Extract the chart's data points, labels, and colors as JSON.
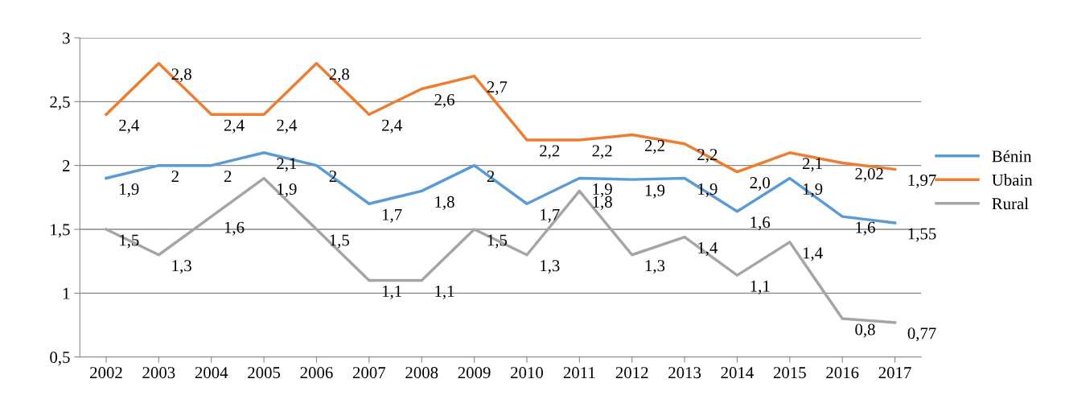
{
  "chart_data": {
    "type": "line",
    "categories": [
      "2002",
      "2003",
      "2004",
      "2005",
      "2006",
      "2007",
      "2008",
      "2009",
      "2010",
      "2011",
      "2012",
      "2013",
      "2014",
      "2015",
      "2016",
      "2017"
    ],
    "ylim": [
      0.5,
      3
    ],
    "yticks": [
      {
        "value": 0.5,
        "label": "0,5"
      },
      1,
      {
        "value": 1.5,
        "label": "1,5"
      },
      2,
      {
        "value": 2.5,
        "label": "2,5"
      },
      3
    ],
    "grid": "y",
    "legend": "right",
    "marker": "none",
    "line_style": "solid",
    "series": [
      {
        "name": "Bénin",
        "color": "#5b9bd5",
        "values": [
          1.9,
          2,
          2,
          2.1,
          2,
          1.7,
          1.8,
          2,
          1.7,
          1.9,
          1.89,
          1.9,
          1.64,
          1.9,
          1.6,
          1.55
        ],
        "value_labels": [
          "1,9",
          "2",
          "2",
          "2,1",
          "2",
          "1,7",
          "1,8",
          "2",
          "1,7",
          "1,9",
          "1,9",
          "1,9",
          "1,6",
          "1,9",
          "1,6",
          "1,55"
        ]
      },
      {
        "name": "Ubain",
        "color": "#ed7d31",
        "values": [
          2.4,
          2.8,
          2.4,
          2.4,
          2.8,
          2.4,
          2.6,
          2.7,
          2.2,
          2.2,
          2.24,
          2.17,
          1.95,
          2.1,
          2.02,
          1.97
        ],
        "value_labels": [
          "2,4",
          "2,8",
          "2,4",
          "2,4",
          "2,8",
          "2,4",
          "2,6",
          "2,7",
          "2,2",
          "2,2",
          "2,2",
          "2,2",
          "2,0",
          "2,1",
          "2,02",
          "1,97"
        ]
      },
      {
        "name": "Rural",
        "color": "#a5a5a5",
        "values": [
          1.5,
          1.3,
          1.6,
          1.9,
          1.5,
          1.1,
          1.1,
          1.5,
          1.3,
          1.8,
          1.3,
          1.44,
          1.14,
          1.4,
          0.8,
          0.77
        ],
        "value_labels": [
          "1,5",
          "1,3",
          "1,6",
          "1,9",
          "1,5",
          "1,1",
          "1,1",
          "1,5",
          "1,3",
          "1,8",
          "1,3",
          "1,4",
          "1,1",
          "1,4",
          "0,8",
          "0,77"
        ]
      }
    ]
  }
}
